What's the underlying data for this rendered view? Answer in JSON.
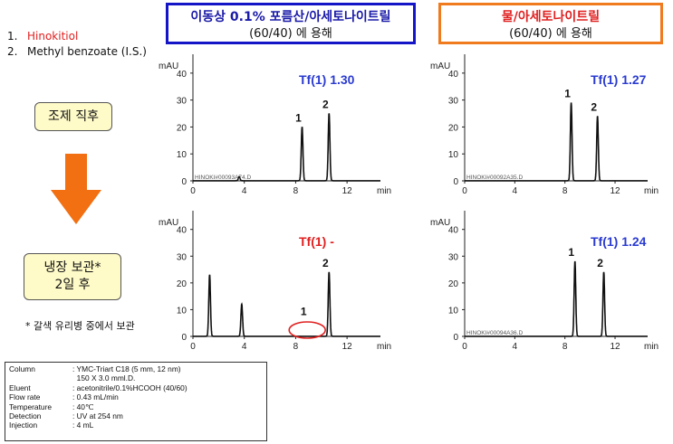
{
  "legend_list": [
    {
      "num": "1.",
      "name": "Hinokitiol",
      "color": "#e02020"
    },
    {
      "num": "2.",
      "name": "Methyl benzoate (I.S.)",
      "color": "#111111"
    }
  ],
  "headers": {
    "left": {
      "title": "이동상 0.1% 포름산/아세토나이트릴",
      "subtitle": "(60/40) 에 용해"
    },
    "right": {
      "title": "물/아세토나이트릴",
      "subtitle": "(60/40) 에 용해"
    }
  },
  "stage_labels": {
    "fresh": "조제 직후",
    "stored_line1": "냉장 보관*",
    "stored_line2": "2일 후"
  },
  "footnote": "* 갈색 유리병 중에서 보관",
  "conditions": [
    {
      "label": "Column",
      "lines": [
        ": YMC-Triart C18 (5 mm, 12 nm)",
        "150 X 3.0 mml.D."
      ]
    },
    {
      "label": "Eluent",
      "lines": [
        ": acetonitrile/0.1%HCOOH (40/60)"
      ]
    },
    {
      "label": "Flow rate",
      "lines": [
        ": 0.43 mL/min"
      ]
    },
    {
      "label": "Temperature",
      "lines": [
        ": 40℃"
      ]
    },
    {
      "label": "Detection",
      "lines": [
        ": UV at 254 nm"
      ]
    },
    {
      "label": "Injection",
      "lines": [
        ": 4 mL"
      ]
    }
  ],
  "chart_data": [
    {
      "type": "line",
      "id": "top-left",
      "ylabel": "mAU",
      "xlabel": "min",
      "xlim": [
        0,
        14.6
      ],
      "ylim": [
        0,
        47
      ],
      "xticks": [
        0,
        4,
        8,
        12
      ],
      "yticks": [
        0,
        10,
        20,
        30,
        40
      ],
      "tf_label": "Tf(1) 1.30",
      "tf_color": "#2a3bd0",
      "file_label": "HINOKI#00093A74.D",
      "peaks": [
        {
          "t": 3.6,
          "h": 1.5
        },
        {
          "t": 8.5,
          "h": 20
        },
        {
          "t": 10.6,
          "h": 25
        }
      ],
      "peak_labels": [
        {
          "t": 8.5,
          "text": "1"
        },
        {
          "t": 10.6,
          "text": "2"
        }
      ],
      "highlight": null
    },
    {
      "type": "line",
      "id": "top-right",
      "ylabel": "mAU",
      "xlabel": "min",
      "xlim": [
        0,
        14.6
      ],
      "ylim": [
        0,
        47
      ],
      "xticks": [
        0,
        4,
        8,
        12
      ],
      "yticks": [
        0,
        10,
        20,
        30,
        40
      ],
      "tf_label": "Tf(1) 1.27",
      "tf_color": "#2a3bd0",
      "file_label": "HINOKI#00092A35.D",
      "peaks": [
        {
          "t": 8.5,
          "h": 29
        },
        {
          "t": 10.6,
          "h": 24
        }
      ],
      "peak_labels": [
        {
          "t": 8.5,
          "text": "1"
        },
        {
          "t": 10.6,
          "text": "2"
        }
      ],
      "highlight": null
    },
    {
      "type": "line",
      "id": "bottom-left",
      "ylabel": "mAU",
      "xlabel": "min",
      "xlim": [
        0,
        14.6
      ],
      "ylim": [
        0,
        47
      ],
      "xticks": [
        0,
        4,
        8,
        12
      ],
      "yticks": [
        0,
        10,
        20,
        30,
        40
      ],
      "tf_label": "Tf(1)  -",
      "tf_color": "#e02020",
      "file_label": "",
      "peaks": [
        {
          "t": 1.3,
          "h": 23
        },
        {
          "t": 3.8,
          "h": 12
        },
        {
          "t": 10.6,
          "h": 24
        }
      ],
      "peak_labels": [
        {
          "t": 8.9,
          "text": "1"
        },
        {
          "t": 10.6,
          "text": "2"
        }
      ],
      "highlight": {
        "t": 8.9,
        "h": 0.5
      }
    },
    {
      "type": "line",
      "id": "bottom-right",
      "ylabel": "mAU",
      "xlabel": "min",
      "xlim": [
        0,
        14.6
      ],
      "ylim": [
        0,
        47
      ],
      "xticks": [
        0,
        4,
        8,
        12
      ],
      "yticks": [
        0,
        10,
        20,
        30,
        40
      ],
      "tf_label": "Tf(1) 1.24",
      "tf_color": "#2a3bd0",
      "file_label": "HINOKI#00094A36.D",
      "peaks": [
        {
          "t": 8.8,
          "h": 28
        },
        {
          "t": 11.1,
          "h": 24
        }
      ],
      "peak_labels": [
        {
          "t": 8.8,
          "text": "1"
        },
        {
          "t": 11.1,
          "text": "2"
        }
      ],
      "highlight": null
    }
  ]
}
